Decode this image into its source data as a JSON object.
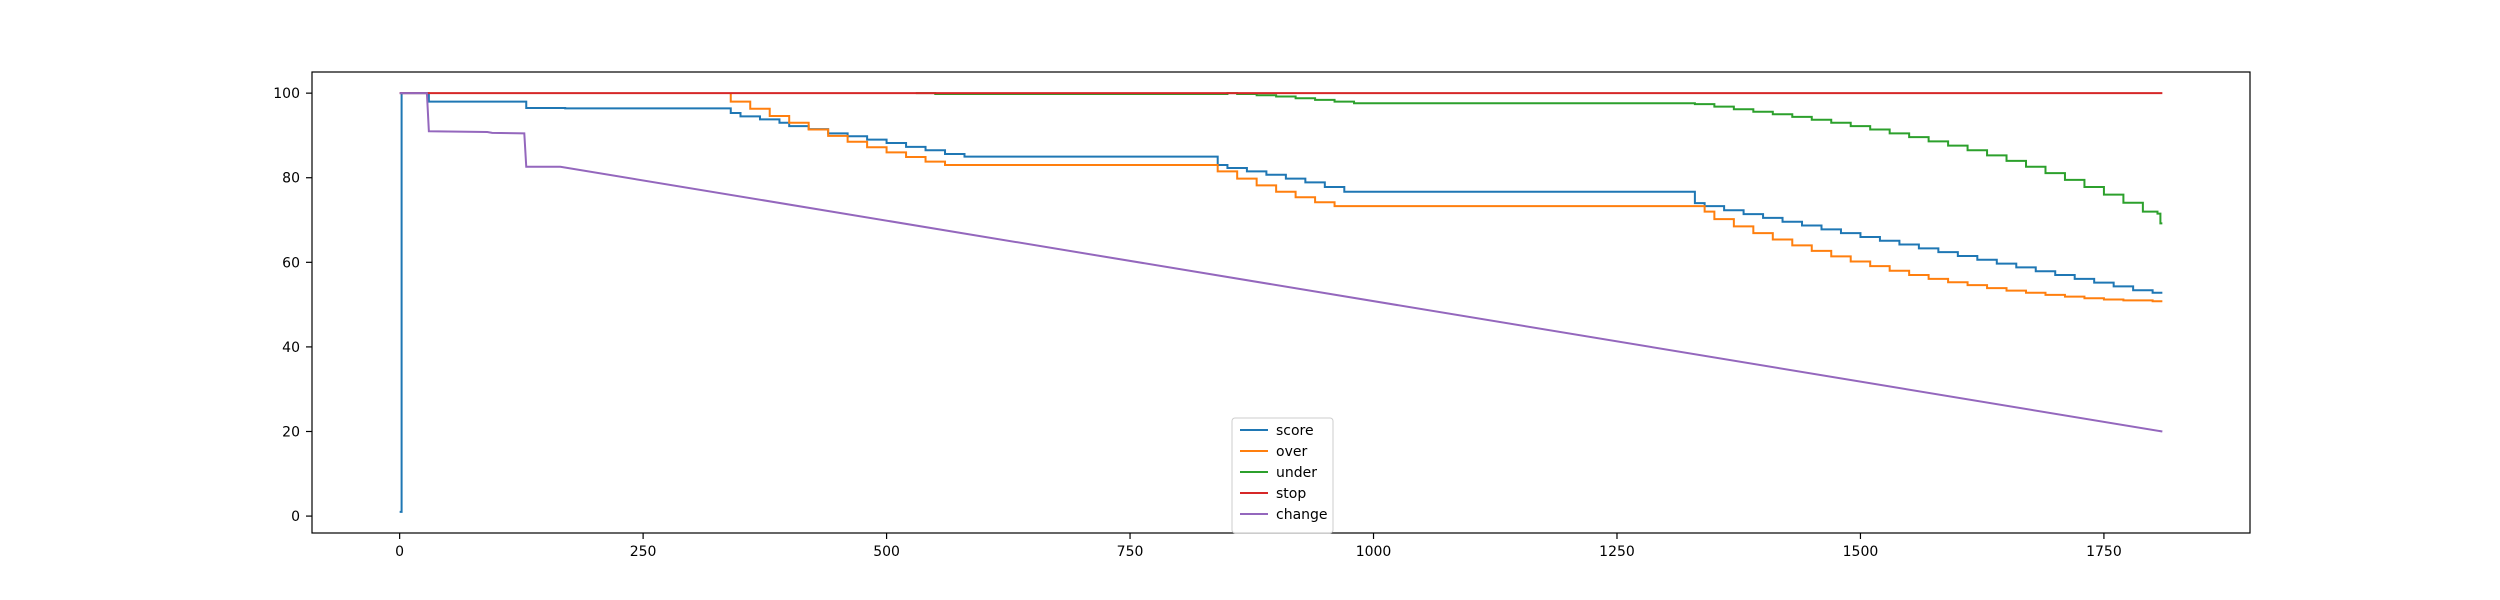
{
  "chart_data": {
    "type": "line",
    "title": "",
    "xlabel": "",
    "ylabel": "",
    "xlim": [
      -90,
      1900
    ],
    "ylim": [
      -4,
      105
    ],
    "xticks": [
      0,
      250,
      500,
      750,
      1000,
      1250,
      1500,
      1750
    ],
    "yticks": [
      0,
      20,
      40,
      60,
      80,
      100
    ],
    "grid": false,
    "legend_position": "bottom-center",
    "series": [
      {
        "name": "score",
        "color": "#1f77b4",
        "step": true,
        "points": [
          [
            0,
            1
          ],
          [
            2,
            100
          ],
          [
            30,
            100
          ],
          [
            30,
            98
          ],
          [
            130,
            98
          ],
          [
            130,
            96.5
          ],
          [
            170,
            96.4
          ],
          [
            340,
            95.3
          ],
          [
            350,
            94.5
          ],
          [
            370,
            93.8
          ],
          [
            390,
            93
          ],
          [
            400,
            92.2
          ],
          [
            420,
            91.5
          ],
          [
            440,
            90.5
          ],
          [
            460,
            89.8
          ],
          [
            480,
            89
          ],
          [
            500,
            88.2
          ],
          [
            520,
            87.3
          ],
          [
            540,
            86.5
          ],
          [
            560,
            85.6
          ],
          [
            580,
            85
          ],
          [
            840,
            83
          ],
          [
            850,
            82.3
          ],
          [
            870,
            81.5
          ],
          [
            890,
            80.7
          ],
          [
            910,
            79.8
          ],
          [
            930,
            78.9
          ],
          [
            950,
            77.8
          ],
          [
            970,
            76.7
          ],
          [
            1330,
            74
          ],
          [
            1340,
            73.3
          ],
          [
            1360,
            72.3
          ],
          [
            1380,
            71.4
          ],
          [
            1400,
            70.5
          ],
          [
            1420,
            69.6
          ],
          [
            1440,
            68.7
          ],
          [
            1460,
            67.8
          ],
          [
            1480,
            66.9
          ],
          [
            1500,
            66
          ],
          [
            1520,
            65.1
          ],
          [
            1540,
            64.2
          ],
          [
            1560,
            63.3
          ],
          [
            1580,
            62.4
          ],
          [
            1600,
            61.5
          ],
          [
            1620,
            60.6
          ],
          [
            1640,
            59.7
          ],
          [
            1660,
            58.8
          ],
          [
            1680,
            57.9
          ],
          [
            1700,
            57
          ],
          [
            1720,
            56.1
          ],
          [
            1740,
            55.2
          ],
          [
            1760,
            54.3
          ],
          [
            1780,
            53.4
          ],
          [
            1800,
            52.8
          ],
          [
            1810,
            52.8
          ]
        ]
      },
      {
        "name": "over",
        "color": "#ff7f0e",
        "step": true,
        "points": [
          [
            340,
            100
          ],
          [
            340,
            98
          ],
          [
            360,
            96.3
          ],
          [
            380,
            94.6
          ],
          [
            400,
            93
          ],
          [
            420,
            91.4
          ],
          [
            440,
            89.9
          ],
          [
            460,
            88.5
          ],
          [
            480,
            87.2
          ],
          [
            500,
            86
          ],
          [
            520,
            84.9
          ],
          [
            540,
            83.8
          ],
          [
            560,
            83
          ],
          [
            830,
            83
          ],
          [
            840,
            81.5
          ],
          [
            860,
            79.8
          ],
          [
            880,
            78.2
          ],
          [
            900,
            76.7
          ],
          [
            920,
            75.4
          ],
          [
            940,
            74.2
          ],
          [
            960,
            73.3
          ],
          [
            1330,
            73.3
          ],
          [
            1340,
            72
          ],
          [
            1350,
            70.2
          ],
          [
            1370,
            68.5
          ],
          [
            1390,
            66.9
          ],
          [
            1410,
            65.4
          ],
          [
            1430,
            64
          ],
          [
            1450,
            62.7
          ],
          [
            1470,
            61.4
          ],
          [
            1490,
            60.2
          ],
          [
            1510,
            59.1
          ],
          [
            1530,
            58
          ],
          [
            1550,
            57
          ],
          [
            1570,
            56.1
          ],
          [
            1590,
            55.3
          ],
          [
            1610,
            54.6
          ],
          [
            1630,
            53.9
          ],
          [
            1650,
            53.3
          ],
          [
            1670,
            52.8
          ],
          [
            1690,
            52.3
          ],
          [
            1710,
            51.9
          ],
          [
            1730,
            51.5
          ],
          [
            1750,
            51.2
          ],
          [
            1770,
            51
          ],
          [
            1800,
            50.8
          ],
          [
            1810,
            50.8
          ]
        ]
      },
      {
        "name": "under",
        "color": "#2ca02c",
        "step": true,
        "points": [
          [
            530,
            100
          ],
          [
            550,
            99.8
          ],
          [
            850,
            100
          ],
          [
            860,
            99.8
          ],
          [
            880,
            99.5
          ],
          [
            900,
            99.2
          ],
          [
            920,
            98.8
          ],
          [
            940,
            98.4
          ],
          [
            960,
            98
          ],
          [
            980,
            97.6
          ],
          [
            1320,
            97.6
          ],
          [
            1330,
            97.4
          ],
          [
            1350,
            96.8
          ],
          [
            1370,
            96.2
          ],
          [
            1390,
            95.6
          ],
          [
            1410,
            95
          ],
          [
            1430,
            94.4
          ],
          [
            1450,
            93.7
          ],
          [
            1470,
            93
          ],
          [
            1490,
            92.2
          ],
          [
            1510,
            91.4
          ],
          [
            1530,
            90.5
          ],
          [
            1550,
            89.6
          ],
          [
            1570,
            88.6
          ],
          [
            1590,
            87.6
          ],
          [
            1610,
            86.5
          ],
          [
            1630,
            85.3
          ],
          [
            1650,
            84
          ],
          [
            1670,
            82.6
          ],
          [
            1690,
            81.1
          ],
          [
            1710,
            79.5
          ],
          [
            1730,
            77.8
          ],
          [
            1750,
            76
          ],
          [
            1770,
            74.1
          ],
          [
            1790,
            72
          ],
          [
            1805,
            71.5
          ],
          [
            1808,
            69.2
          ],
          [
            1810,
            69.2
          ]
        ]
      },
      {
        "name": "stop",
        "color": "#d62728",
        "step": false,
        "points": [
          [
            0,
            100
          ],
          [
            1810,
            100
          ]
        ]
      },
      {
        "name": "change",
        "color": "#9467bd",
        "step": false,
        "points": [
          [
            0,
            100
          ],
          [
            28,
            100
          ],
          [
            30,
            91
          ],
          [
            90,
            90.8
          ],
          [
            95,
            90.6
          ],
          [
            128,
            90.5
          ],
          [
            130,
            82.6
          ],
          [
            165,
            82.6
          ],
          [
            1810,
            20
          ]
        ]
      }
    ]
  }
}
